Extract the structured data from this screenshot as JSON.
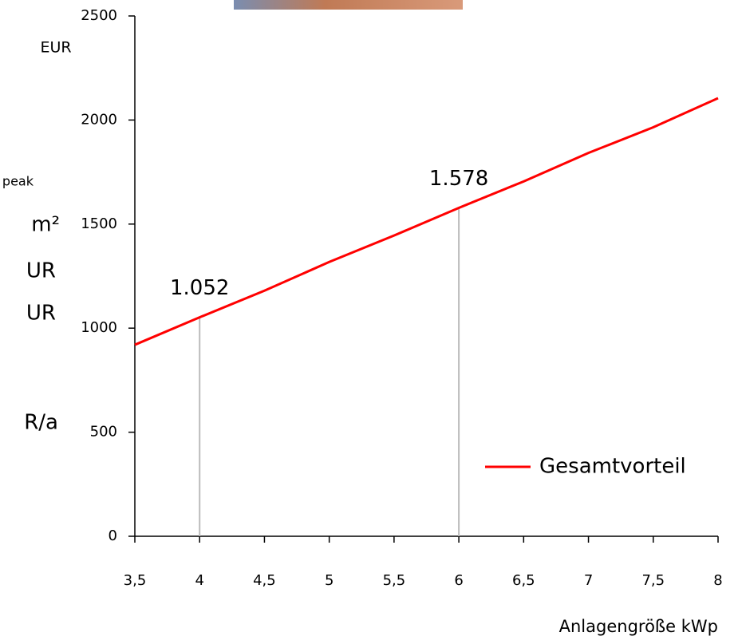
{
  "chart_data": {
    "type": "line",
    "y_label": "EUR",
    "x_label": "Anlagengröße kWp",
    "x": [
      3.5,
      4,
      4.5,
      5,
      5.5,
      6,
      6.5,
      7,
      7.5,
      8
    ],
    "series": [
      {
        "name": "Gesamtvorteil",
        "color": "#ff0000",
        "values": [
          920,
          1052,
          1180,
          1318,
          1445,
          1578,
          1705,
          1842,
          1965,
          2105
        ],
        "value_labels": [
          null,
          "1.052",
          null,
          null,
          null,
          "1.578",
          null,
          null,
          null,
          null
        ]
      }
    ],
    "xlim": [
      3.5,
      8
    ],
    "xticks": [
      {
        "value": 3.5,
        "label": "3,5"
      },
      4,
      {
        "value": 4.5,
        "label": "4,5"
      },
      5,
      {
        "value": 5.5,
        "label": "5,5"
      },
      6,
      {
        "value": 6.5,
        "label": "6,5"
      },
      7,
      {
        "value": 7.5,
        "label": "7,5"
      },
      8
    ],
    "ylim": [
      0,
      2500
    ],
    "yticks": [
      0,
      500,
      1000,
      1500,
      2000,
      2500
    ],
    "grid": false,
    "legend": "lower right",
    "side_texts": [
      "peak",
      "m²",
      "UR",
      "UR",
      "R/a"
    ]
  }
}
